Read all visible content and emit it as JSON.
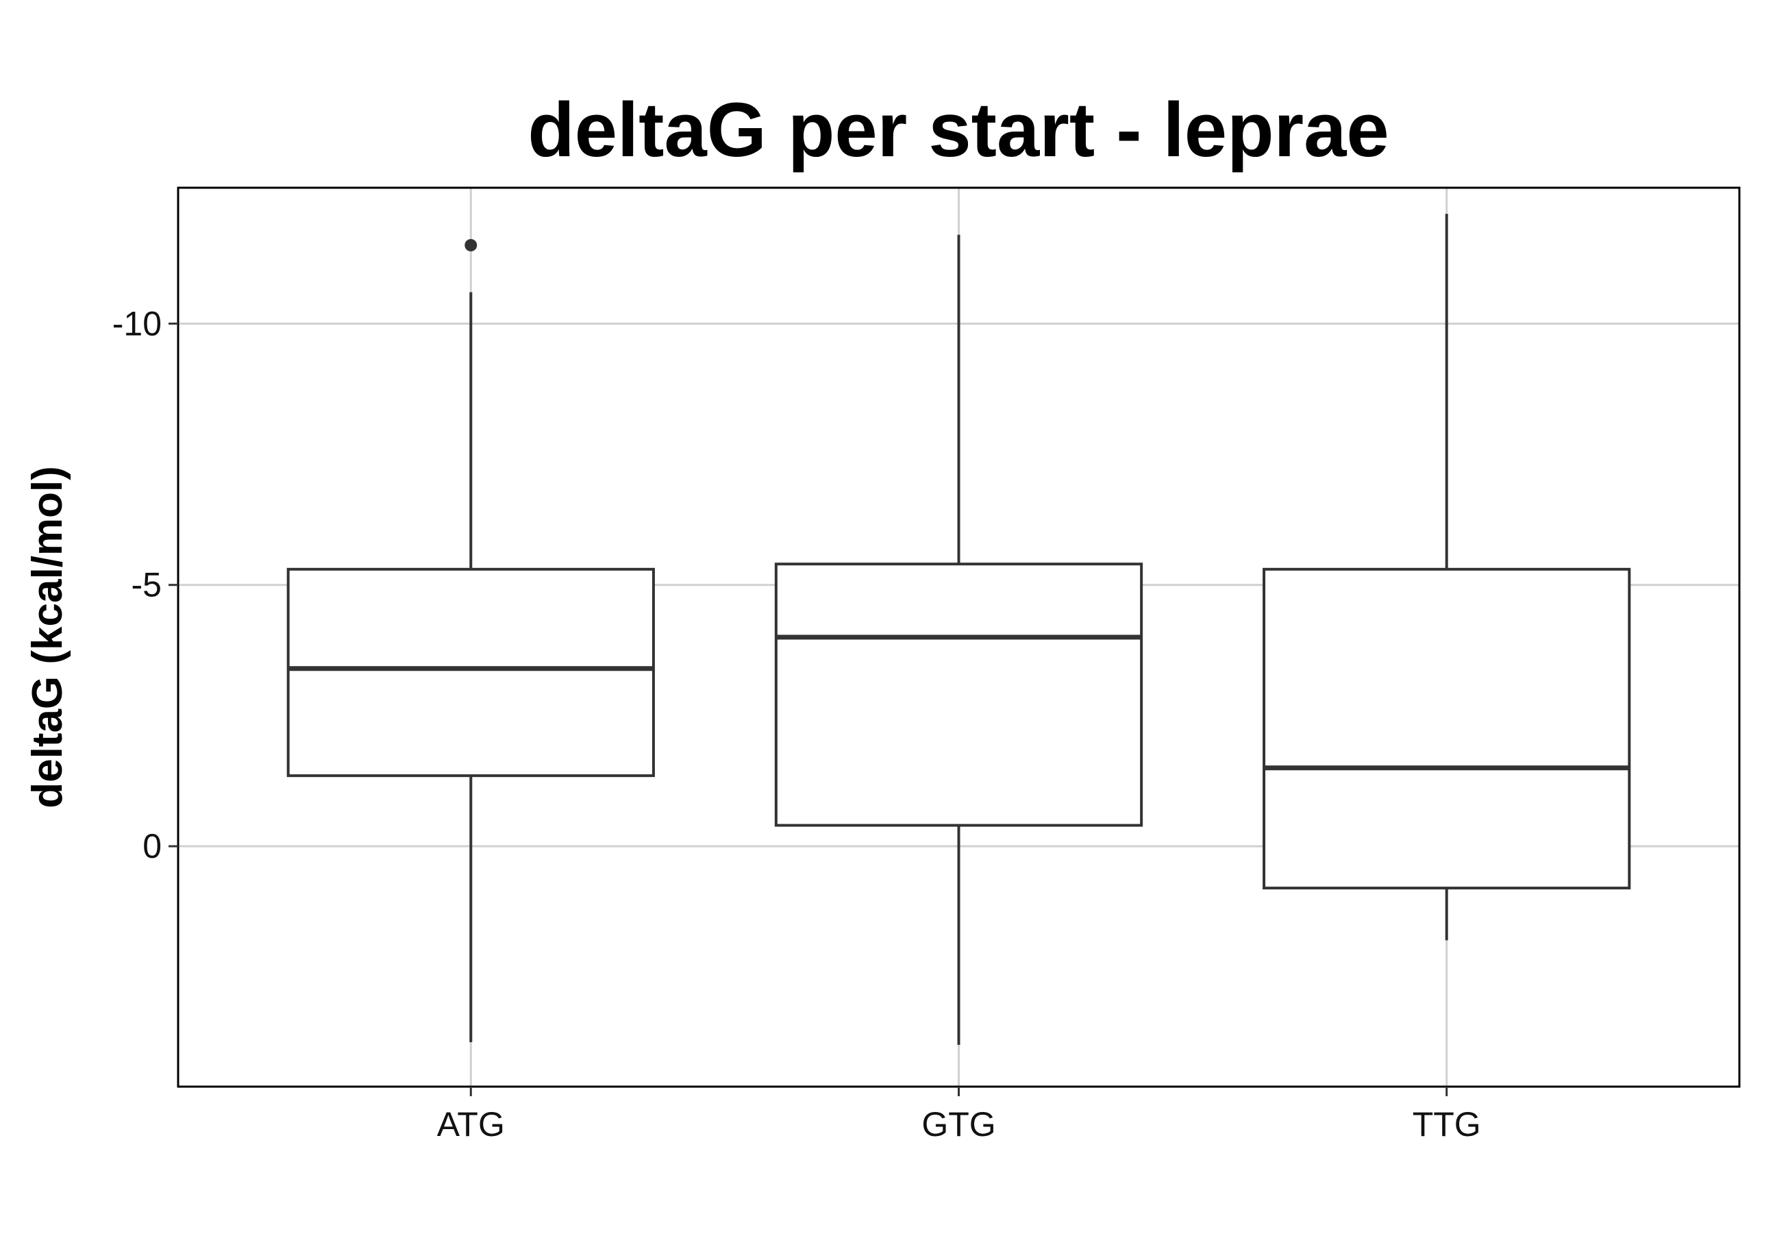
{
  "chart_data": {
    "type": "boxplot",
    "title": "deltaG per start - leprae",
    "xlabel": "",
    "ylabel": "deltaG (kcal/mol)",
    "y_reversed": true,
    "ylim": [
      -12.6,
      4.6
    ],
    "yticks": [
      -10,
      -5,
      0
    ],
    "ytick_labels": [
      "-10",
      "-5",
      "0"
    ],
    "grid": true,
    "categories": [
      "ATG",
      "GTG",
      "TTG"
    ],
    "boxes": [
      {
        "category": "ATG",
        "whisker_low": -10.6,
        "q1": -5.3,
        "median": -3.4,
        "q3": -1.35,
        "whisker_high": 3.75,
        "outliers": [
          -11.5
        ]
      },
      {
        "category": "GTG",
        "whisker_low": -11.7,
        "q1": -5.4,
        "median": -4.0,
        "q3": -0.4,
        "whisker_high": 3.8,
        "outliers": []
      },
      {
        "category": "TTG",
        "whisker_low": -12.1,
        "q1": -5.3,
        "median": -1.5,
        "q3": 0.8,
        "whisker_high": 1.8,
        "outliers": []
      }
    ],
    "colors": {
      "box_stroke": "#333333",
      "grid": "#d0d0d0",
      "panel_border": "#000000",
      "background": "#ffffff"
    }
  }
}
